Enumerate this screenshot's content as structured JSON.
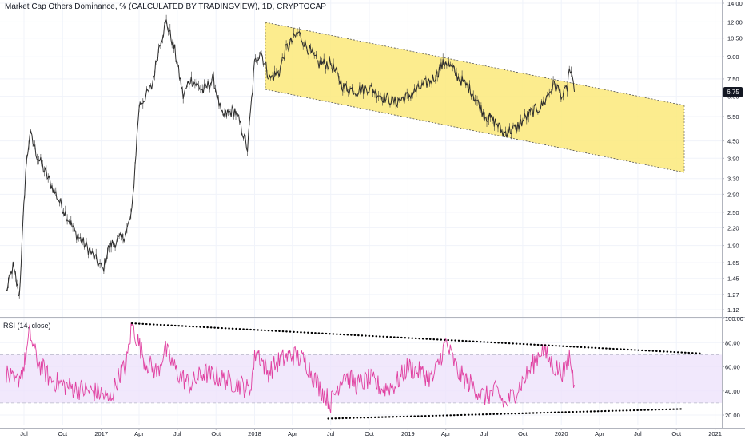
{
  "chart_data": [
    {
      "type": "line",
      "title": "Market Cap Others Dominance, % (CALCULATED BY TRADINGVIEW), 1D, CRYPTOCAP",
      "scale": "log",
      "y_ticks": [
        "1.12",
        "1.27",
        "1.45",
        "1.65",
        "1.90",
        "2.20",
        "2.50",
        "2.90",
        "3.30",
        "3.90",
        "4.50",
        "5.50",
        "6.50",
        "7.50",
        "9.00",
        "10.50",
        "12.00",
        "14.00"
      ],
      "ylim": [
        1.08,
        14.2
      ],
      "x_ticks": [
        "Jul",
        "Oct",
        "2017",
        "Apr",
        "Jul",
        "Oct",
        "2018",
        "Apr",
        "Jul",
        "Oct",
        "2019",
        "Apr",
        "Jul",
        "Oct",
        "2020",
        "Apr",
        "Jul",
        "Oct",
        "2021"
      ],
      "last_value": "6.75",
      "series": [
        {
          "x": [
            "2016-05-20",
            "2016-06-05",
            "2016-06-20",
            "2016-07-05",
            "2016-07-15",
            "2016-08-01",
            "2016-09-01",
            "2016-10-01",
            "2016-11-01",
            "2016-12-01",
            "2017-01-05",
            "2017-01-20",
            "2017-02-15",
            "2017-03-01",
            "2017-03-15",
            "2017-04-01",
            "2017-05-01",
            "2017-05-20",
            "2017-06-05",
            "2017-06-25",
            "2017-07-15",
            "2017-08-01",
            "2017-09-01",
            "2017-09-25",
            "2017-10-15",
            "2017-11-15",
            "2017-12-01",
            "2017-12-15",
            "2018-01-01",
            "2018-01-15",
            "2018-02-06",
            "2018-03-01",
            "2018-03-15",
            "2018-04-15",
            "2018-05-01",
            "2018-06-01",
            "2018-07-01",
            "2018-08-01",
            "2018-09-01",
            "2018-10-01",
            "2018-11-01",
            "2018-12-01",
            "2019-01-01",
            "2019-02-01",
            "2019-03-01",
            "2019-04-01",
            "2019-05-01",
            "2019-06-01",
            "2019-07-01",
            "2019-08-01",
            "2019-08-15",
            "2019-09-15",
            "2019-10-15",
            "2019-11-15",
            "2019-12-15",
            "2020-01-05",
            "2020-01-15",
            "2020-01-20",
            "2020-02-01"
          ],
          "values": [
            1.3,
            1.6,
            1.25,
            3.5,
            4.8,
            4.0,
            3.2,
            2.6,
            2.1,
            1.85,
            1.55,
            1.9,
            2.0,
            2.1,
            2.5,
            6.0,
            7.0,
            10.0,
            12.0,
            9.5,
            6.5,
            7.5,
            6.8,
            7.5,
            5.5,
            5.8,
            5.0,
            4.2,
            8.5,
            9.5,
            7.5,
            8.0,
            9.5,
            11.0,
            10.0,
            8.5,
            8.5,
            7.0,
            6.8,
            7.0,
            6.5,
            6.2,
            6.5,
            7.0,
            7.5,
            8.7,
            7.6,
            6.8,
            5.6,
            5.2,
            4.8,
            5.0,
            5.6,
            6.0,
            7.2,
            6.5,
            7.0,
            8.2,
            6.75
          ]
        }
      ]
    },
    {
      "type": "line",
      "title": "RSI (14, close)",
      "y_ticks": [
        "20.00",
        "40.00",
        "60.00",
        "80.00",
        "100.00"
      ],
      "ylim": [
        15,
        100
      ],
      "bands": [
        30,
        70
      ],
      "series": [
        {
          "x": [
            "2016-05-20",
            "2016-06-10",
            "2016-07-01",
            "2016-07-15",
            "2016-08-01",
            "2016-09-01",
            "2016-10-01",
            "2016-11-01",
            "2016-12-01",
            "2017-01-01",
            "2017-01-20",
            "2017-02-15",
            "2017-03-01",
            "2017-03-15",
            "2017-04-15",
            "2017-05-15",
            "2017-06-01",
            "2017-07-01",
            "2017-08-01",
            "2017-09-01",
            "2017-10-01",
            "2017-11-01",
            "2017-12-01",
            "2017-12-20",
            "2018-01-05",
            "2018-02-01",
            "2018-03-01",
            "2018-04-01",
            "2018-05-01",
            "2018-06-01",
            "2018-07-01",
            "2018-08-01",
            "2018-09-01",
            "2018-10-01",
            "2018-11-01",
            "2018-12-01",
            "2019-01-01",
            "2019-02-01",
            "2019-03-01",
            "2019-04-01",
            "2019-05-01",
            "2019-06-01",
            "2019-07-01",
            "2019-08-01",
            "2019-08-20",
            "2019-09-15",
            "2019-10-15",
            "2019-11-15",
            "2019-12-15",
            "2020-01-10",
            "2020-01-20",
            "2020-02-01"
          ],
          "values": [
            55,
            45,
            60,
            88,
            65,
            50,
            45,
            42,
            40,
            38,
            32,
            55,
            60,
            95,
            65,
            55,
            75,
            55,
            45,
            55,
            52,
            48,
            45,
            40,
            75,
            55,
            65,
            70,
            65,
            45,
            30,
            55,
            45,
            50,
            42,
            45,
            60,
            55,
            50,
            80,
            55,
            45,
            35,
            40,
            28,
            40,
            55,
            75,
            60,
            55,
            70,
            45
          ]
        }
      ],
      "trendlines": [
        {
          "from": [
            "2017-03-15",
            96
          ],
          "to": [
            "2020-12-01",
            71
          ]
        },
        {
          "from": [
            "2018-06-25",
            17
          ],
          "to": [
            "2020-10-15",
            25
          ]
        }
      ]
    }
  ]
}
